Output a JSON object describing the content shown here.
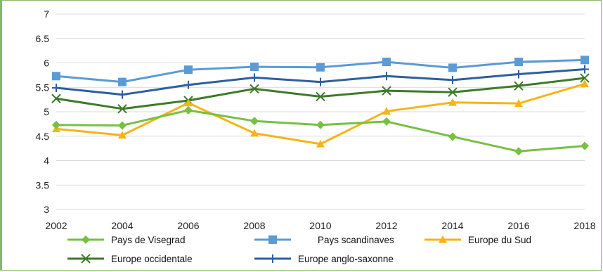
{
  "chart_data": {
    "type": "line",
    "x": [
      2002,
      2004,
      2006,
      2008,
      2010,
      2012,
      2014,
      2016,
      2018
    ],
    "x_ticks": [
      "2002",
      "2004",
      "2006",
      "2008",
      "2010",
      "2012",
      "2014",
      "2016",
      "2018"
    ],
    "y_ticks": [
      "3",
      "3.5",
      "4",
      "4.5",
      "5",
      "5.5",
      "6",
      "6.5",
      "7"
    ],
    "ylim": [
      3,
      7
    ],
    "grid": true,
    "legend_position": "bottom",
    "series": [
      {
        "name": "Pays de Visegrad",
        "color": "#76c043",
        "marker": "diamond",
        "values": [
          4.73,
          4.72,
          5.03,
          4.81,
          4.73,
          4.8,
          4.49,
          4.19,
          4.3
        ]
      },
      {
        "name": "Pays scandinaves",
        "color": "#5b9bd5",
        "marker": "square",
        "values": [
          5.73,
          5.61,
          5.86,
          5.92,
          5.91,
          6.02,
          5.9,
          6.02,
          6.06
        ]
      },
      {
        "name": "Europe du Sud",
        "color": "#f5b41a",
        "marker": "triangle",
        "values": [
          4.65,
          4.52,
          5.18,
          4.56,
          4.34,
          5.01,
          5.19,
          5.17,
          5.57
        ]
      },
      {
        "name": "Europe occidentale",
        "color": "#3d7a2a",
        "marker": "x",
        "values": [
          5.27,
          5.06,
          5.23,
          5.47,
          5.31,
          5.43,
          5.4,
          5.53,
          5.69
        ]
      },
      {
        "name": "Europe anglo-saxonne",
        "color": "#2e5f9e",
        "marker": "plus",
        "values": [
          5.49,
          5.35,
          5.55,
          5.7,
          5.61,
          5.73,
          5.65,
          5.77,
          5.87
        ]
      }
    ]
  }
}
